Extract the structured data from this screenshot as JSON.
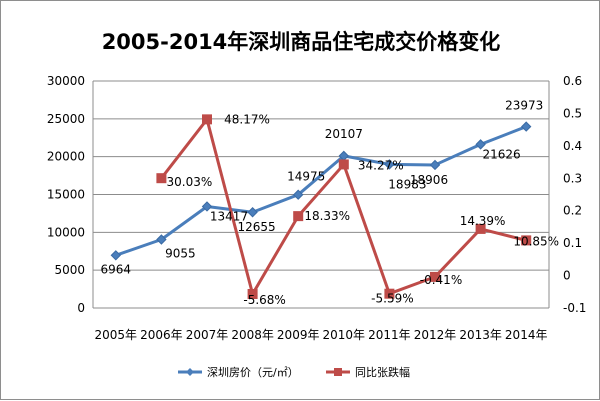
{
  "chart_data": {
    "type": "line",
    "title": "2005-2014年深圳商品住宅成交价格变化",
    "categories": [
      "2005年",
      "2006年",
      "2007年",
      "2008年",
      "2009年",
      "2010年",
      "2011年",
      "2012年",
      "2013年",
      "2014年"
    ],
    "series": [
      {
        "name": "深圳房价（元/㎡）",
        "axis": "left",
        "color": "#4a7ebb",
        "marker": "diamond",
        "values": [
          6964,
          9055,
          13417,
          12655,
          14975,
          20107,
          18983,
          18906,
          21626,
          23973
        ],
        "labels": [
          "6964",
          "9055",
          "13417",
          "12655",
          "14975",
          "20107",
          "18983",
          "18906",
          "21626",
          "23973"
        ]
      },
      {
        "name": "同比张跌幅",
        "axis": "right",
        "color": "#be4b48",
        "marker": "square",
        "values": [
          null,
          0.3003,
          0.4817,
          -0.0568,
          0.1833,
          0.3427,
          -0.0559,
          -0.0041,
          0.1439,
          0.1085
        ],
        "labels": [
          "",
          "30.03%",
          "48.17%",
          "-5.68%",
          "18.33%",
          "34.27%",
          "-5.59%",
          "-0.41%",
          "14.39%",
          "10.85%"
        ]
      }
    ],
    "left_axis": {
      "ylim": [
        0,
        30000
      ],
      "ticks": [
        "0",
        "5000",
        "10000",
        "15000",
        "20000",
        "25000",
        "30000"
      ]
    },
    "right_axis": {
      "ylim": [
        -0.1,
        0.6
      ],
      "ticks": [
        "-0.1",
        "0",
        "0.1",
        "0.2",
        "0.3",
        "0.4",
        "0.5",
        "0.6"
      ]
    },
    "grid": true,
    "legend_position": "bottom"
  }
}
